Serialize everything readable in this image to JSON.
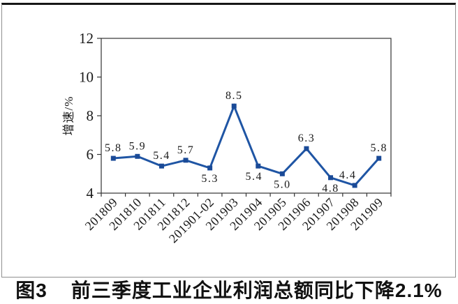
{
  "figure": {
    "caption_prefix": "图3",
    "caption_text": "前三季度工业企业利润总额同比下降2.1%"
  },
  "chart_data": {
    "type": "line",
    "title": "",
    "xlabel": "",
    "ylabel": "增速/%",
    "categories": [
      "201809",
      "201810",
      "201811",
      "201812",
      "201901-02",
      "201903",
      "201904",
      "201905",
      "201906",
      "201907",
      "201908",
      "201909"
    ],
    "series": [
      {
        "name": "增速",
        "values": [
          5.8,
          5.9,
          5.4,
          5.7,
          5.3,
          8.5,
          5.4,
          5.0,
          6.3,
          4.8,
          4.4,
          5.8
        ]
      }
    ],
    "ylim": [
      4,
      12
    ],
    "yticks": [
      4,
      6,
      8,
      10,
      12
    ],
    "grid": false,
    "legend_position": "none",
    "line_color": "#1F55A4",
    "marker_color": "#1A4A97",
    "marker_shape": "square",
    "axis_color": "#333333",
    "label_positions": [
      "above",
      "above",
      "above",
      "above",
      "below",
      "above",
      "below",
      "below",
      "above",
      "below",
      "above",
      "above"
    ],
    "label_dx": [
      0,
      0,
      0,
      0,
      0,
      0,
      -6,
      0,
      0,
      0,
      -10,
      0
    ]
  }
}
